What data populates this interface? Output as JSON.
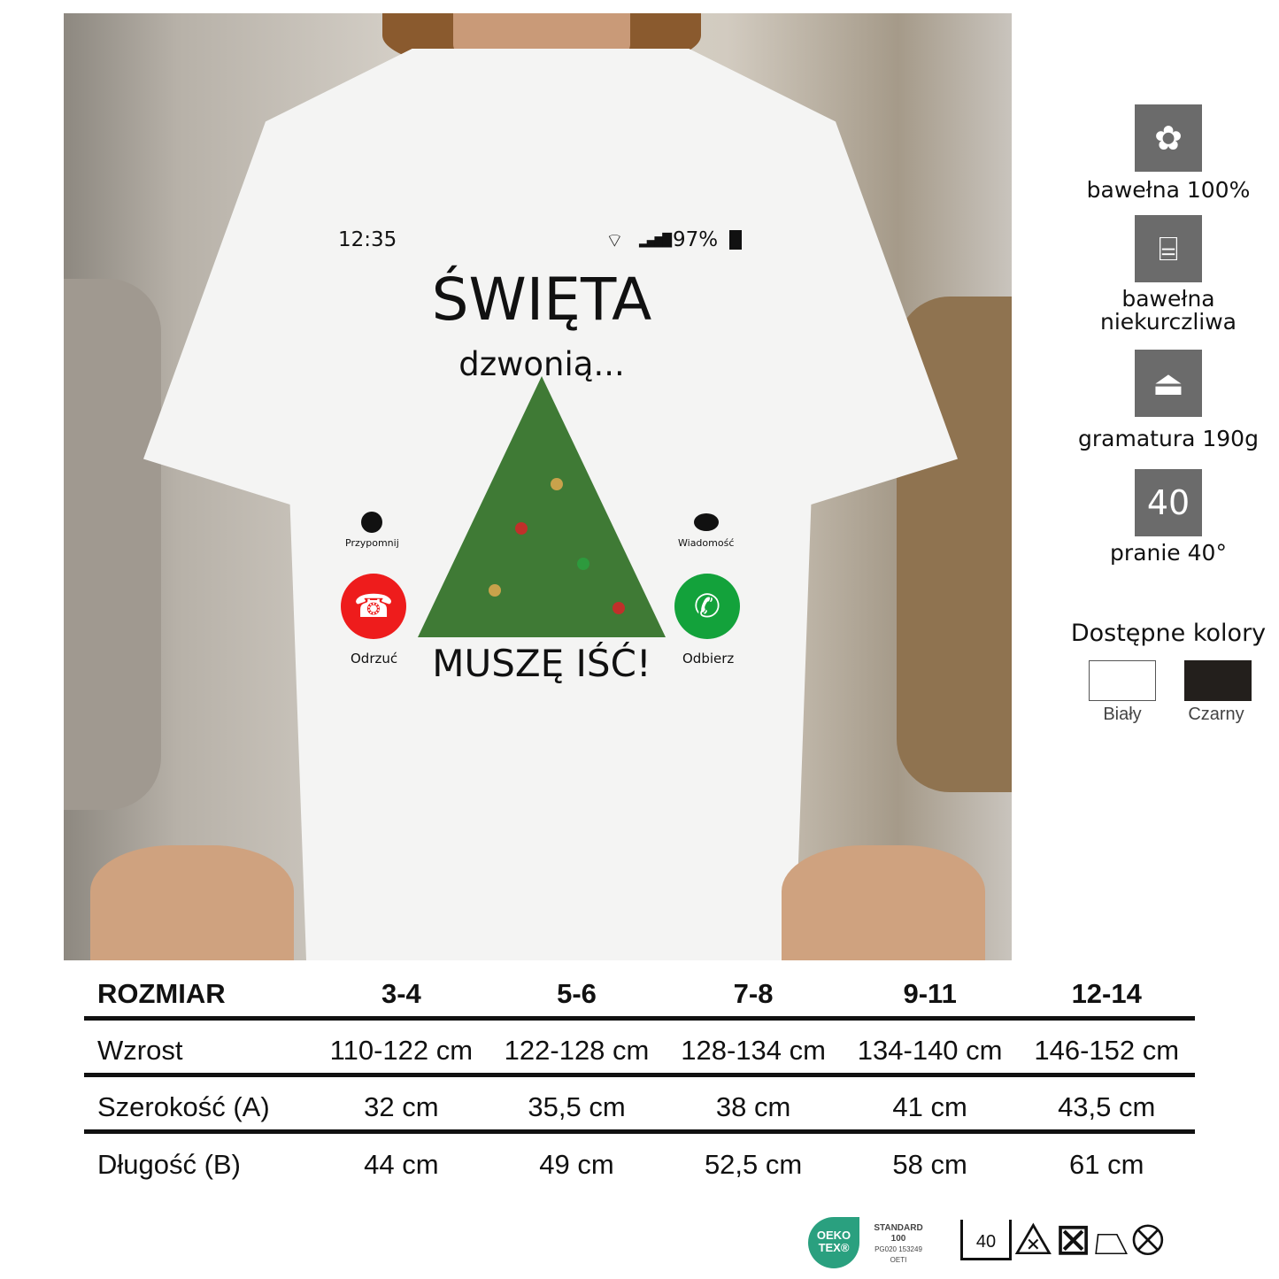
{
  "print": {
    "time": "12:35",
    "battery": "97%",
    "title": "ŚWIĘTA",
    "subtitle": "dzwonią...",
    "remind": "Przypomnij",
    "message": "Wiadomość",
    "decline": "Odrzuć",
    "accept": "Odbierz",
    "bottom": "MUSZĘ IŚĆ!"
  },
  "features": [
    {
      "icon": "cotton-plant-icon",
      "label": "bawełna 100%"
    },
    {
      "icon": "yarn-spool-icon",
      "label": "bawełna niekurczliwa"
    },
    {
      "icon": "weight-icon",
      "label": "gramatura 190g"
    },
    {
      "icon": "wash-40-icon",
      "label": "pranie 40°",
      "badge": "40"
    }
  ],
  "colors": {
    "title": "Dostępne kolory",
    "items": [
      {
        "name": "Biały",
        "hex": "#ffffff"
      },
      {
        "name": "Czarny",
        "hex": "#231f1c"
      }
    ]
  },
  "size_table": {
    "headers": [
      "ROZMIAR",
      "3-4",
      "5-6",
      "7-8",
      "9-11",
      "12-14"
    ],
    "rows": [
      [
        "Wzrost",
        "110-122 cm",
        "122-128 cm",
        "128-134 cm",
        "134-140 cm",
        "146-152 cm"
      ],
      [
        "Szerokość (A)",
        "32 cm",
        "35,5 cm",
        "38 cm",
        "41 cm",
        "43,5 cm"
      ],
      [
        "Długość (B)",
        "44 cm",
        "49 cm",
        "52,5 cm",
        "58 cm",
        "61 cm"
      ]
    ]
  },
  "certification": {
    "logo": "OEKO TEX®",
    "standard": "STANDARD",
    "number": "100",
    "code": "PG020 153249",
    "institute": "OETI",
    "color": "#2aa07f"
  },
  "care": {
    "wash": "40"
  }
}
